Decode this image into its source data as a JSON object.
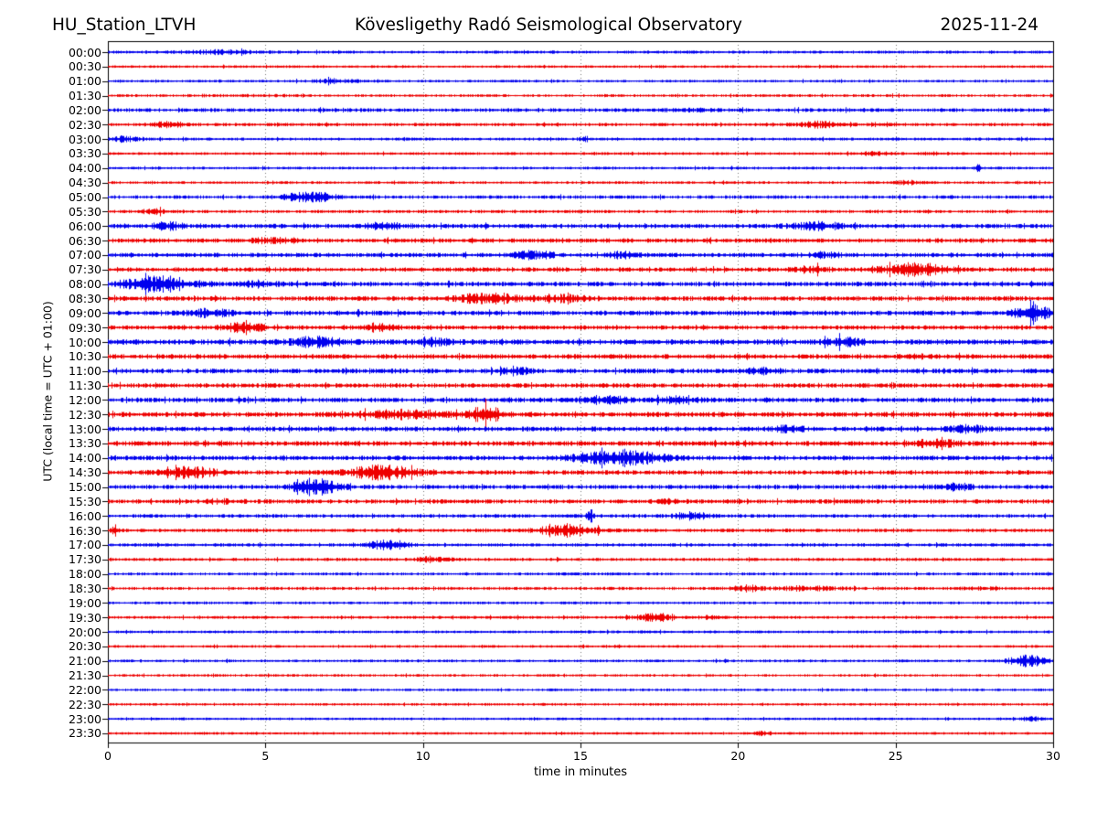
{
  "header": {
    "station": "HU_Station_LTVH",
    "observatory": "Kövesligethy Radó Seismological Observatory",
    "date": "2025-11-24"
  },
  "chart_data": {
    "type": "helicorder",
    "title": "HU_Station_LTVH  Kövesligethy Radó Seismological Observatory  2025-11-24",
    "xlabel": "time in minutes",
    "ylabel": "UTC (local time = UTC + 01:00)",
    "x_range": [
      0,
      30
    ],
    "x_ticks": [
      0,
      5,
      10,
      15,
      20,
      25,
      30
    ],
    "minutes_per_row": 30,
    "grid": {
      "vertical_dotted_at": [
        5,
        10,
        15,
        20,
        25
      ],
      "style": "dotted",
      "color": "#777777"
    },
    "trace_colors": {
      "blue": "#0000ee",
      "red": "#ee0000"
    },
    "events_format": "[center_minute, width_minute, extra_amplitude_px]",
    "rows": [
      {
        "time": "00:00",
        "color": "blue",
        "base": 1.5,
        "events": [
          [
            3.5,
            1.2,
            1.5
          ]
        ]
      },
      {
        "time": "00:30",
        "color": "red",
        "base": 1.3,
        "events": []
      },
      {
        "time": "01:00",
        "color": "blue",
        "base": 1.3,
        "events": [
          [
            7.2,
            0.8,
            1.8
          ]
        ]
      },
      {
        "time": "01:30",
        "color": "red",
        "base": 1.4,
        "events": [
          [
            4.0,
            2.0,
            0.5
          ]
        ]
      },
      {
        "time": "02:00",
        "color": "blue",
        "base": 1.9,
        "events": [
          [
            18.3,
            1.0,
            0.8
          ]
        ]
      },
      {
        "time": "02:30",
        "color": "red",
        "base": 1.7,
        "events": [
          [
            1.9,
            0.5,
            2.5
          ],
          [
            22.6,
            0.6,
            2.5
          ],
          [
            24.6,
            0.4,
            1.8
          ]
        ]
      },
      {
        "time": "03:00",
        "color": "blue",
        "base": 1.5,
        "events": [
          [
            0.5,
            0.4,
            2.5
          ],
          [
            15.1,
            0.15,
            2.2
          ]
        ]
      },
      {
        "time": "03:30",
        "color": "red",
        "base": 1.4,
        "events": [
          [
            24.3,
            0.5,
            1.5
          ],
          [
            26.2,
            0.4,
            1.0
          ]
        ]
      },
      {
        "time": "04:00",
        "color": "blue",
        "base": 1.4,
        "events": [
          [
            27.6,
            0.07,
            8.0
          ]
        ]
      },
      {
        "time": "04:30",
        "color": "red",
        "base": 1.4,
        "events": [
          [
            25.3,
            0.5,
            1.5
          ]
        ]
      },
      {
        "time": "05:00",
        "color": "blue",
        "base": 1.8,
        "events": [
          [
            6.4,
            0.8,
            4.5
          ]
        ]
      },
      {
        "time": "05:30",
        "color": "red",
        "base": 1.6,
        "events": [
          [
            1.5,
            0.5,
            1.8
          ]
        ]
      },
      {
        "time": "06:00",
        "color": "blue",
        "base": 2.2,
        "events": [
          [
            1.9,
            0.5,
            3.0
          ],
          [
            8.8,
            0.6,
            3.0
          ],
          [
            22.5,
            0.8,
            3.5
          ]
        ]
      },
      {
        "time": "06:30",
        "color": "red",
        "base": 2.2,
        "events": [
          [
            5.2,
            0.6,
            2.0
          ]
        ]
      },
      {
        "time": "07:00",
        "color": "blue",
        "base": 2.2,
        "events": [
          [
            13.5,
            0.6,
            3.5
          ],
          [
            16.3,
            0.5,
            2.5
          ],
          [
            22.7,
            0.5,
            2.2
          ]
        ]
      },
      {
        "time": "07:30",
        "color": "red",
        "base": 2.2,
        "events": [
          [
            22.3,
            0.5,
            2.5
          ],
          [
            25.6,
            1.0,
            5.5
          ]
        ]
      },
      {
        "time": "08:00",
        "color": "blue",
        "base": 2.4,
        "events": [
          [
            1.6,
            1.1,
            7.0
          ],
          [
            4.8,
            0.5,
            2.5
          ]
        ]
      },
      {
        "time": "08:30",
        "color": "red",
        "base": 2.4,
        "events": [
          [
            12.1,
            1.0,
            4.5
          ],
          [
            14.5,
            0.8,
            2.5
          ]
        ]
      },
      {
        "time": "09:00",
        "color": "blue",
        "base": 2.4,
        "events": [
          [
            3.2,
            0.7,
            3.5
          ],
          [
            29.3,
            0.55,
            8.0
          ]
        ]
      },
      {
        "time": "09:30",
        "color": "red",
        "base": 2.2,
        "events": [
          [
            4.3,
            0.6,
            4.5
          ],
          [
            8.6,
            0.5,
            3.5
          ]
        ]
      },
      {
        "time": "10:00",
        "color": "blue",
        "base": 2.7,
        "events": [
          [
            6.6,
            0.8,
            4.0
          ],
          [
            10.4,
            0.5,
            3.0
          ],
          [
            23.3,
            0.5,
            4.0
          ]
        ]
      },
      {
        "time": "10:30",
        "color": "red",
        "base": 2.4,
        "events": [
          [
            25.8,
            0.5,
            1.5
          ]
        ]
      },
      {
        "time": "11:00",
        "color": "blue",
        "base": 2.4,
        "events": [
          [
            12.9,
            0.5,
            3.0
          ],
          [
            20.8,
            0.5,
            2.5
          ]
        ]
      },
      {
        "time": "11:30",
        "color": "red",
        "base": 2.3,
        "events": []
      },
      {
        "time": "12:00",
        "color": "blue",
        "base": 2.4,
        "events": [
          [
            15.9,
            0.6,
            3.0
          ],
          [
            18.1,
            0.6,
            3.0
          ]
        ]
      },
      {
        "time": "12:30",
        "color": "red",
        "base": 2.5,
        "events": [
          [
            9.5,
            1.5,
            3.5
          ],
          [
            12.0,
            0.5,
            7.5
          ]
        ]
      },
      {
        "time": "13:00",
        "color": "blue",
        "base": 2.4,
        "events": [
          [
            21.6,
            0.5,
            2.5
          ],
          [
            27.3,
            0.6,
            2.5
          ]
        ]
      },
      {
        "time": "13:30",
        "color": "red",
        "base": 2.4,
        "events": [
          [
            26.3,
            0.7,
            4.0
          ]
        ]
      },
      {
        "time": "14:00",
        "color": "blue",
        "base": 2.4,
        "events": [
          [
            16.2,
            1.3,
            7.0
          ]
        ]
      },
      {
        "time": "14:30",
        "color": "red",
        "base": 2.3,
        "events": [
          [
            2.6,
            0.8,
            5.0
          ],
          [
            8.7,
            1.1,
            6.0
          ]
        ]
      },
      {
        "time": "15:00",
        "color": "blue",
        "base": 2.2,
        "events": [
          [
            6.6,
            0.7,
            8.0
          ],
          [
            26.9,
            0.5,
            2.5
          ]
        ]
      },
      {
        "time": "15:30",
        "color": "red",
        "base": 2.2,
        "events": [
          [
            3.6,
            0.6,
            1.2
          ],
          [
            17.8,
            0.4,
            1.5
          ]
        ]
      },
      {
        "time": "16:00",
        "color": "blue",
        "base": 1.8,
        "events": [
          [
            15.3,
            0.12,
            5.0
          ],
          [
            18.5,
            0.5,
            3.5
          ]
        ]
      },
      {
        "time": "16:30",
        "color": "red",
        "base": 1.8,
        "events": [
          [
            0.2,
            0.1,
            6.5
          ],
          [
            14.6,
            0.9,
            5.5
          ]
        ]
      },
      {
        "time": "17:00",
        "color": "blue",
        "base": 1.7,
        "events": [
          [
            8.9,
            0.6,
            4.5
          ]
        ]
      },
      {
        "time": "17:30",
        "color": "red",
        "base": 1.6,
        "events": [
          [
            10.3,
            0.5,
            2.2
          ]
        ]
      },
      {
        "time": "18:00",
        "color": "blue",
        "base": 1.5,
        "events": []
      },
      {
        "time": "18:30",
        "color": "red",
        "base": 1.6,
        "events": [
          [
            20.3,
            0.5,
            2.5
          ],
          [
            22.2,
            0.8,
            2.0
          ],
          [
            27.6,
            0.4,
            1.5
          ]
        ]
      },
      {
        "time": "19:00",
        "color": "blue",
        "base": 1.4,
        "events": []
      },
      {
        "time": "19:30",
        "color": "red",
        "base": 1.5,
        "events": [
          [
            17.3,
            0.6,
            3.5
          ],
          [
            19.0,
            0.4,
            1.5
          ]
        ]
      },
      {
        "time": "20:00",
        "color": "blue",
        "base": 1.4,
        "events": []
      },
      {
        "time": "20:30",
        "color": "red",
        "base": 1.3,
        "events": []
      },
      {
        "time": "21:00",
        "color": "blue",
        "base": 1.4,
        "events": [
          [
            29.2,
            0.6,
            5.0
          ]
        ]
      },
      {
        "time": "21:30",
        "color": "red",
        "base": 1.3,
        "events": []
      },
      {
        "time": "22:00",
        "color": "blue",
        "base": 1.3,
        "events": []
      },
      {
        "time": "22:30",
        "color": "red",
        "base": 1.3,
        "events": []
      },
      {
        "time": "23:00",
        "color": "blue",
        "base": 1.3,
        "events": [
          [
            29.3,
            0.3,
            1.8
          ]
        ]
      },
      {
        "time": "23:30",
        "color": "red",
        "base": 1.3,
        "events": [
          [
            20.8,
            0.3,
            1.8
          ]
        ]
      }
    ]
  }
}
